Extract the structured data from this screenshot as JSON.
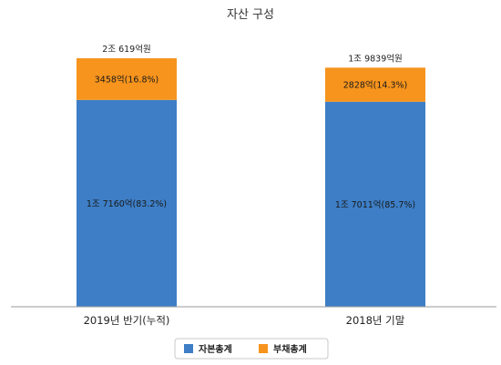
{
  "chart_data": {
    "type": "bar",
    "stacked": true,
    "title": "자산 구성",
    "categories": [
      "2019년 반기(누적)",
      "2018년 기말"
    ],
    "series": [
      {
        "name": "자본총계",
        "color": "#3d7ec6",
        "values": [
          17160,
          17011
        ],
        "labels": [
          "1조 7160억(83.2%)",
          "1조 7011억(85.7%)"
        ]
      },
      {
        "name": "부채총계",
        "color": "#f7941d",
        "values": [
          3458,
          2828
        ],
        "labels": [
          "3458억(16.8%)",
          "2828억(14.3%)"
        ]
      }
    ],
    "totals": [
      "2조 619억원",
      "1조 9839억원"
    ],
    "legend_position": "bottom",
    "grid": false
  }
}
